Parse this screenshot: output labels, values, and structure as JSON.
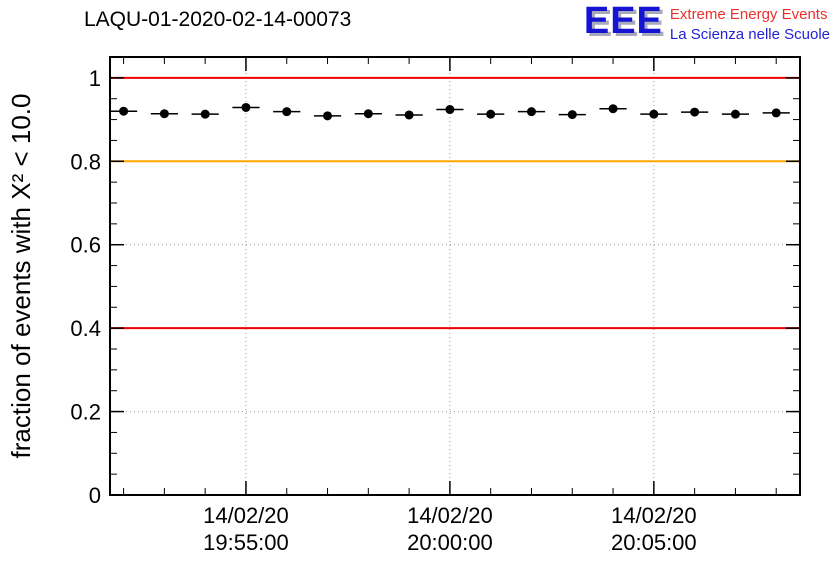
{
  "header": {
    "title": "LAQU-01-2020-02-14-00073",
    "logo": {
      "acronym": "EEE",
      "line1": "Extreme Energy Events",
      "line2": "La Scienza nelle Scuole"
    }
  },
  "chart_data": {
    "type": "scatter",
    "title": "LAQU-01-2020-02-14-00073",
    "ylabel": "fraction of events with X² < 10.0",
    "xlabel": "",
    "x_unit": "seconds after 14/02/20 19:50:00",
    "xlim": [
      100,
      1115
    ],
    "ylim": [
      0,
      1.05
    ],
    "grid": true,
    "grid_color": "#999999",
    "frame_color": "#000000",
    "marker_color": "#000000",
    "y_minor_step": 0.05,
    "x_minor_step": 60,
    "yticks": [
      {
        "y": 0,
        "label": "0"
      },
      {
        "y": 0.2,
        "label": "0.2"
      },
      {
        "y": 0.4,
        "label": "0.4"
      },
      {
        "y": 0.6,
        "label": "0.6"
      },
      {
        "y": 0.8,
        "label": "0.8"
      },
      {
        "y": 1,
        "label": "1"
      }
    ],
    "xticks": [
      {
        "x": 300,
        "date": "14/02/20",
        "time": "19:55:00"
      },
      {
        "x": 600,
        "date": "14/02/20",
        "time": "20:00:00"
      },
      {
        "x": 900,
        "date": "14/02/20",
        "time": "20:05:00"
      }
    ],
    "ref_lines": [
      {
        "y": 1.0,
        "color": "#ee0000"
      },
      {
        "y": 0.8,
        "color": "#ffa500"
      },
      {
        "y": 0.4,
        "color": "#ee0000"
      }
    ],
    "xerr": 20,
    "points": [
      {
        "x": 120,
        "y": 0.92
      },
      {
        "x": 180,
        "y": 0.914
      },
      {
        "x": 240,
        "y": 0.913
      },
      {
        "x": 300,
        "y": 0.929
      },
      {
        "x": 360,
        "y": 0.919
      },
      {
        "x": 420,
        "y": 0.909
      },
      {
        "x": 480,
        "y": 0.914
      },
      {
        "x": 540,
        "y": 0.911
      },
      {
        "x": 600,
        "y": 0.924
      },
      {
        "x": 660,
        "y": 0.913
      },
      {
        "x": 720,
        "y": 0.919
      },
      {
        "x": 780,
        "y": 0.912
      },
      {
        "x": 840,
        "y": 0.926
      },
      {
        "x": 900,
        "y": 0.913
      },
      {
        "x": 960,
        "y": 0.918
      },
      {
        "x": 1020,
        "y": 0.913
      },
      {
        "x": 1080,
        "y": 0.916
      }
    ]
  }
}
